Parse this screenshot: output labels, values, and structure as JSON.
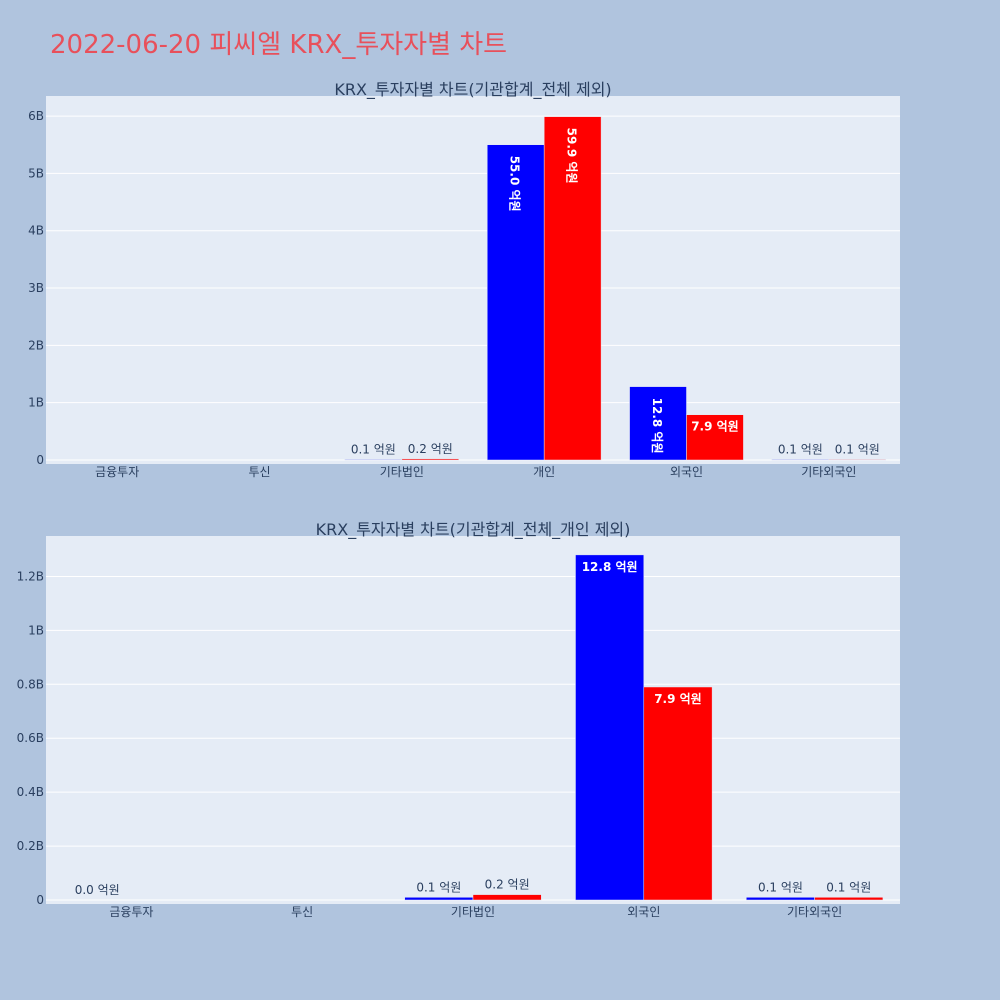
{
  "page_title": "2022-06-20 피씨엘 KRX_투자자별 차트",
  "colors": {
    "background": "#b0c4de",
    "plot_bg": "#e5ecf6",
    "title": "#e8505b",
    "series_a": "#0000ff",
    "series_b": "#ff0000",
    "axis_text": "#2a3f5f"
  },
  "chart_data": [
    {
      "type": "bar",
      "title": "KRX_투자자별 차트(기관합계_전체 제외)",
      "categories": [
        "금융투자",
        "투신",
        "기타법인",
        "개인",
        "외국인",
        "기타외국인"
      ],
      "series": [
        {
          "values": [
            0,
            0,
            10000000,
            5500000000,
            1280000000,
            10000000
          ],
          "labels": [
            "",
            "",
            "0.1 억원",
            "55.0 억원",
            "12.8 억원",
            "0.1 억원"
          ],
          "color": "#0000ff"
        },
        {
          "values": [
            0,
            0,
            20000000,
            5990000000,
            790000000,
            10000000
          ],
          "labels": [
            "",
            "",
            "0.2 억원",
            "59.9 억원",
            "7.9 억원",
            "0.1 억원"
          ],
          "color": "#ff0000"
        }
      ],
      "yticks": [
        0,
        1000000000,
        2000000000,
        3000000000,
        4000000000,
        5000000000,
        6000000000
      ],
      "ytick_labels": [
        "0",
        "1B",
        "2B",
        "3B",
        "4B",
        "5B",
        "6B"
      ],
      "ylim": [
        0,
        6350000000
      ],
      "grid": true
    },
    {
      "type": "bar",
      "title": "KRX_투자자별 차트(기관합계_전체_개인 제외)",
      "categories": [
        "금융투자",
        "투신",
        "기타법인",
        "외국인",
        "기타외국인"
      ],
      "series": [
        {
          "values": [
            0,
            0,
            10000000,
            1280000000,
            10000000
          ],
          "labels": [
            "0.0 억원",
            "",
            "0.1 억원",
            "12.8 억원",
            "0.1 억원"
          ],
          "color": "#0000ff"
        },
        {
          "values": [
            0,
            0,
            20000000,
            790000000,
            10000000
          ],
          "labels": [
            "",
            "",
            "0.2 억원",
            "7.9 억원",
            "0.1 억원"
          ],
          "color": "#ff0000"
        }
      ],
      "yticks": [
        0,
        200000000,
        400000000,
        600000000,
        800000000,
        1000000000,
        1200000000
      ],
      "ytick_labels": [
        "0",
        "0.2B",
        "0.4B",
        "0.6B",
        "0.8B",
        "1B",
        "1.2B"
      ],
      "ylim": [
        0,
        1350000000
      ],
      "grid": true
    }
  ]
}
